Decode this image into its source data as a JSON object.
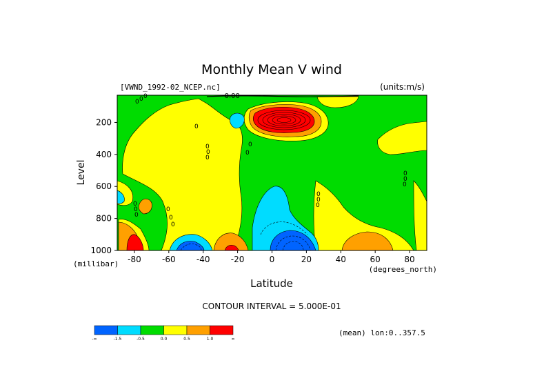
{
  "chart_data": {
    "type": "heatmap",
    "title": "Monthly Mean V wind",
    "dataset_label": "[VWND_1992-02_NCEP.nc]",
    "units_label": "(units:m/s)",
    "xlabel": "Latitude",
    "xunit": "(degrees_north)",
    "ylabel": "Level",
    "yunit": "(millibar)",
    "x_ticks": [
      "-80",
      "-60",
      "-40",
      "-20",
      "0",
      "20",
      "40",
      "60",
      "80"
    ],
    "y_ticks": [
      "200",
      "400",
      "600",
      "800",
      "1000"
    ],
    "xlim": [
      -90,
      90
    ],
    "ylim": [
      1000,
      30
    ],
    "contour_interval_text": "CONTOUR INTERVAL = 5.000E-01",
    "mean_text": "(mean) lon:0..357.5",
    "contour_labels": [
      "-0.00"
    ],
    "colorbar": {
      "colors": [
        "#0064ff",
        "#00dcff",
        "#00dc00",
        "#ffff00",
        "#ffa000",
        "#ff0000"
      ],
      "labels": [
        "-∞",
        "-1.5",
        "-0.5",
        "0.0",
        "0.5",
        "1.0",
        "∞"
      ]
    },
    "features": [
      {
        "name": "upper tropical positive maximum",
        "lat": 15,
        "level": 170,
        "sign": "positive",
        "max_class": "> 1.0"
      },
      {
        "name": "surface negative minimum near equator",
        "lat": 10,
        "level": 1000,
        "sign": "negative",
        "min_class": "< -1.5"
      },
      {
        "name": "southern high-latitude positive",
        "lat": -85,
        "level": 950,
        "sign": "positive",
        "max_class": "> 1.0"
      },
      {
        "name": "southern mid-latitude negative",
        "lat": -50,
        "level": 1000,
        "sign": "negative",
        "min_class": "< -1.5"
      },
      {
        "name": "subtropical positive",
        "lat": -22,
        "level": 1000,
        "sign": "positive",
        "max_class": "> 1.0"
      }
    ]
  }
}
